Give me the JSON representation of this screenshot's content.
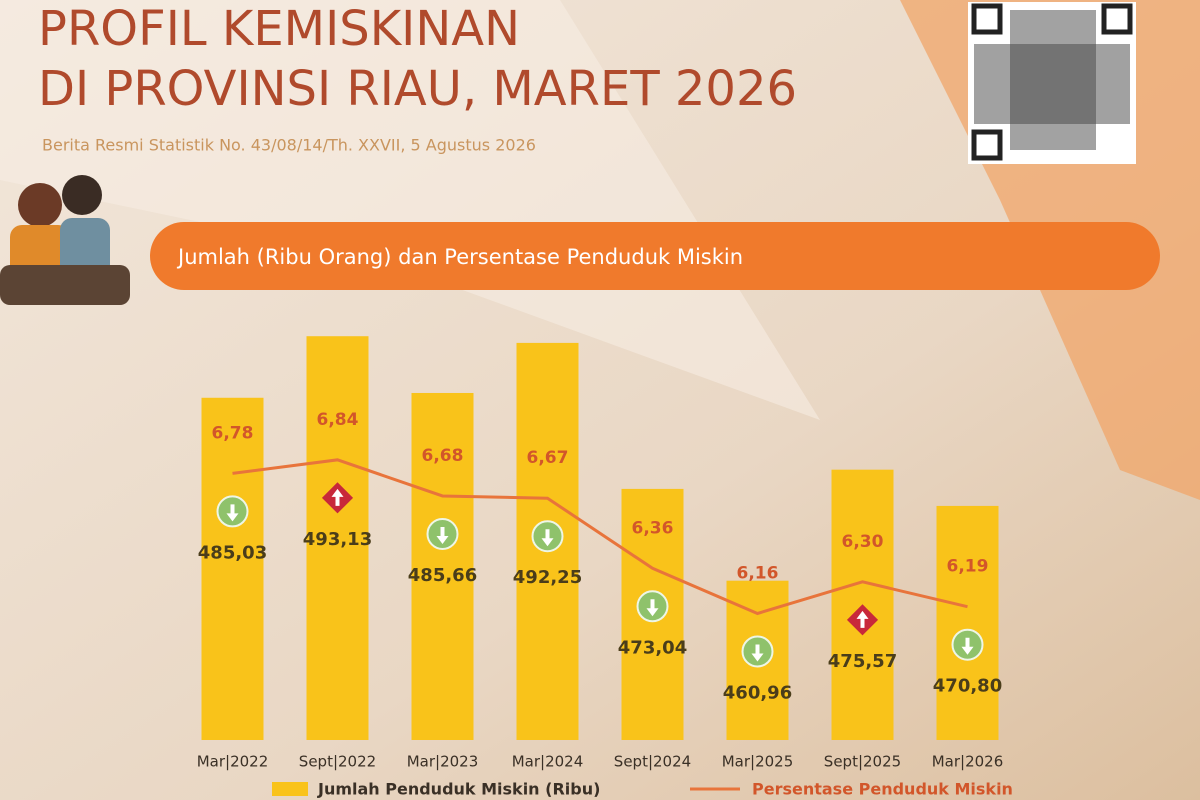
{
  "header": {
    "title": [
      "PROFIL KEMISKINAN",
      "DI PROVINSI RIAU, MARET 2026"
    ],
    "source": "Berita Resmi Statistik No. 43/08/14/Th. XXVII, 5 Agustus 2026"
  },
  "chart_data": {
    "type": "bar-line",
    "title": "Jumlah (Ribu Orang) dan Persentase Penduduk Miskin",
    "categories": [
      "Mar|2022",
      "Sept|2022",
      "Mar|2023",
      "Mar|2024",
      "Sept|2024",
      "Mar|2025",
      "Sept|2025",
      "Mar|2026"
    ],
    "ylim": [
      440,
      495
    ],
    "y2lim": [
      5.6,
      7.45
    ],
    "legend": "bottom",
    "arrows": [
      "down",
      "up",
      "down",
      "down",
      "down",
      "down",
      "up",
      "down"
    ],
    "series": [
      {
        "name": "Jumlah Penduduk Miskin (Ribu)",
        "color": "#f9c31a",
        "values": [
          485.03,
          493.13,
          485.66,
          492.25,
          473.04,
          460.96,
          475.57,
          470.8
        ],
        "value_labels": [
          "485,03",
          "493,13",
          "485,66",
          "492,25",
          "473,04",
          "460,96",
          "475,57",
          "470,80"
        ]
      },
      {
        "name": "Persentase Penduduk Miskin",
        "color": "#e8743b",
        "axis": "y2",
        "values": [
          6.78,
          6.84,
          6.68,
          6.67,
          6.36,
          6.16,
          6.3,
          6.19
        ],
        "value_labels": [
          "6,78",
          "6,84",
          "6,68",
          "6,67",
          "6,36",
          "6,16",
          "6,30",
          "6,19"
        ]
      }
    ]
  }
}
